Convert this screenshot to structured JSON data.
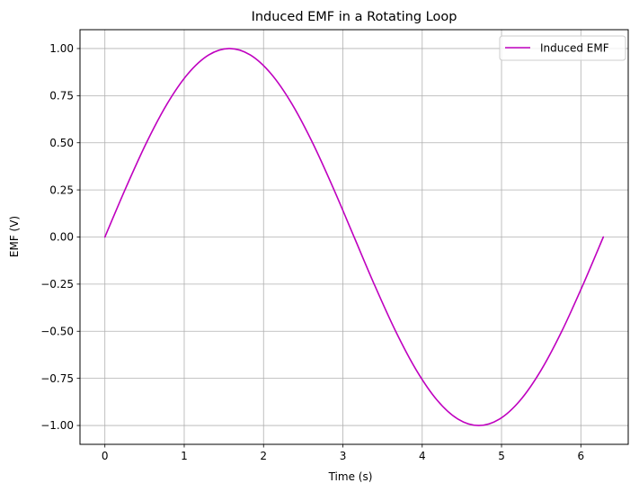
{
  "chart_data": {
    "type": "line",
    "title": "Induced EMF in a Rotating Loop",
    "xlabel": "Time (s)",
    "ylabel": "EMF (V)",
    "xlim": [
      -0.314,
      6.597
    ],
    "ylim": [
      -1.1,
      1.1
    ],
    "xticks": [
      0,
      1,
      2,
      3,
      4,
      5,
      6
    ],
    "xtick_labels": [
      "0",
      "1",
      "2",
      "3",
      "4",
      "5",
      "6"
    ],
    "yticks": [
      -1.0,
      -0.75,
      -0.5,
      -0.25,
      0.0,
      0.25,
      0.5,
      0.75,
      1.0
    ],
    "ytick_labels": [
      "−1.00",
      "−0.75",
      "−0.50",
      "−0.25",
      "0.00",
      "0.25",
      "0.50",
      "0.75",
      "1.00"
    ],
    "grid": true,
    "legend_position": "top-right",
    "series": [
      {
        "name": "Induced EMF",
        "color": "#bf00bf",
        "x": [
          0,
          0.2618,
          0.5236,
          0.7854,
          1.0472,
          1.309,
          1.5708,
          1.8326,
          2.0944,
          2.3562,
          2.618,
          2.8798,
          3.1416,
          3.4034,
          3.6652,
          3.927,
          4.1888,
          4.4506,
          4.7124,
          4.9742,
          5.236,
          5.4978,
          5.7596,
          6.0214,
          6.2832
        ],
        "y": [
          0,
          0.2588,
          0.5,
          0.7071,
          0.866,
          0.9659,
          1.0,
          0.9659,
          0.866,
          0.7071,
          0.5,
          0.2588,
          0,
          -0.2588,
          -0.5,
          -0.7071,
          -0.866,
          -0.9659,
          -1.0,
          -0.9659,
          -0.866,
          -0.7071,
          -0.5,
          -0.2588,
          0
        ]
      }
    ]
  }
}
